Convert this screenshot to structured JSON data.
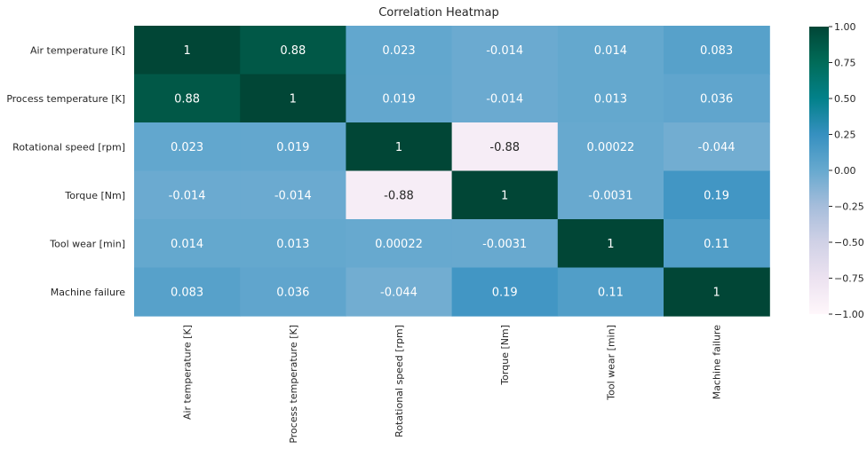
{
  "chart_data": {
    "type": "heatmap",
    "title": "Correlation Heatmap",
    "xlabel": "",
    "ylabel": "",
    "row_labels": [
      "Air temperature [K]",
      "Process temperature [K]",
      "Rotational speed [rpm]",
      "Torque [Nm]",
      "Tool wear [min]",
      "Machine failure"
    ],
    "col_labels": [
      "Air temperature [K]",
      "Process temperature [K]",
      "Rotational speed [rpm]",
      "Torque [Nm]",
      "Tool wear [min]",
      "Machine failure"
    ],
    "values": [
      [
        1,
        0.88,
        0.023,
        -0.014,
        0.014,
        0.083
      ],
      [
        0.88,
        1,
        0.019,
        -0.014,
        0.013,
        0.036
      ],
      [
        0.023,
        0.019,
        1,
        -0.88,
        0.00022,
        -0.044
      ],
      [
        -0.014,
        -0.014,
        -0.88,
        1,
        -0.0031,
        0.19
      ],
      [
        0.014,
        0.013,
        0.00022,
        -0.0031,
        1,
        0.11
      ],
      [
        0.083,
        0.036,
        -0.044,
        0.19,
        0.11,
        1
      ]
    ],
    "annotations": [
      [
        "1",
        "0.88",
        "0.023",
        "-0.014",
        "0.014",
        "0.083"
      ],
      [
        "0.88",
        "1",
        "0.019",
        "-0.014",
        "0.013",
        "0.036"
      ],
      [
        "0.023",
        "0.019",
        "1",
        "-0.88",
        "0.00022",
        "-0.044"
      ],
      [
        "-0.014",
        "-0.014",
        "-0.88",
        "1",
        "-0.0031",
        "0.19"
      ],
      [
        "0.014",
        "0.013",
        "0.00022",
        "-0.0031",
        "1",
        "0.11"
      ],
      [
        "0.083",
        "0.036",
        "-0.044",
        "0.19",
        "0.11",
        "1"
      ]
    ],
    "colormap": "PuBuGn",
    "color_stops": [
      "#fff7fb",
      "#ece2f0",
      "#d0d1e6",
      "#a6bddb",
      "#67a9cf",
      "#3690c0",
      "#02818a",
      "#016c59",
      "#014636"
    ],
    "vmin": -1,
    "vmax": 1,
    "colorbar_ticks": [
      "1.00",
      "0.75",
      "0.50",
      "0.25",
      "0.00",
      "−0.25",
      "−0.50",
      "−0.75",
      "−1.00"
    ],
    "colorbar_tick_values": [
      1,
      0.75,
      0.5,
      0.25,
      0,
      -0.25,
      -0.5,
      -0.75,
      -1
    ],
    "text_color_dark": "#262626",
    "text_color_light": "#ffffff"
  }
}
